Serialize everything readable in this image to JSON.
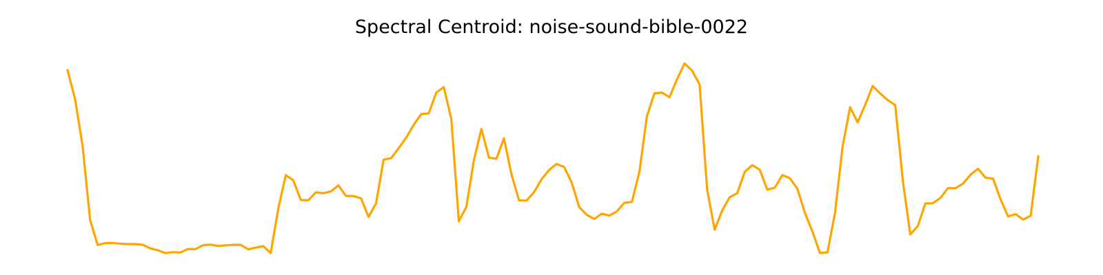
{
  "chart_data": {
    "type": "line",
    "title": "Spectral Centroid: noise-sound-bible-0022",
    "xlabel": "",
    "ylabel": "",
    "axes_visible": false,
    "grid": false,
    "series": [
      {
        "color": "#ffa500",
        "values": [
          0.882,
          0.728,
          0.478,
          0.083,
          -0.05,
          -0.04,
          -0.039,
          -0.043,
          -0.045,
          -0.045,
          -0.049,
          -0.068,
          -0.078,
          -0.093,
          -0.088,
          -0.09,
          -0.071,
          -0.072,
          -0.051,
          -0.048,
          -0.055,
          -0.052,
          -0.049,
          -0.049,
          -0.073,
          -0.064,
          -0.056,
          -0.093,
          0.143,
          0.323,
          0.295,
          0.19,
          0.189,
          0.231,
          0.226,
          0.236,
          0.268,
          0.212,
          0.211,
          0.199,
          0.1,
          0.172,
          0.405,
          0.413,
          0.466,
          0.522,
          0.591,
          0.648,
          0.652,
          0.763,
          0.792,
          0.622,
          0.077,
          0.153,
          0.402,
          0.569,
          0.416,
          0.41,
          0.519,
          0.326,
          0.188,
          0.187,
          0.232,
          0.301,
          0.35,
          0.382,
          0.366,
          0.283,
          0.152,
          0.111,
          0.089,
          0.117,
          0.107,
          0.129,
          0.175,
          0.18,
          0.34,
          0.637,
          0.759,
          0.763,
          0.738,
          0.834,
          0.918,
          0.88,
          0.806,
          0.246,
          0.032,
          0.134,
          0.205,
          0.226,
          0.34,
          0.376,
          0.351,
          0.245,
          0.256,
          0.323,
          0.306,
          0.249,
          0.121,
          0.021,
          -0.093,
          -0.089,
          0.123,
          0.474,
          0.685,
          0.604,
          0.697,
          0.798,
          0.758,
          0.723,
          0.696,
          0.296,
          0.006,
          0.051,
          0.172,
          0.173,
          0.201,
          0.253,
          0.253,
          0.277,
          0.325,
          0.357,
          0.309,
          0.304,
          0.193,
          0.102,
          0.115,
          0.086,
          0.106,
          0.422
        ]
      }
    ],
    "ylim": [
      -0.1,
      1.0
    ]
  }
}
